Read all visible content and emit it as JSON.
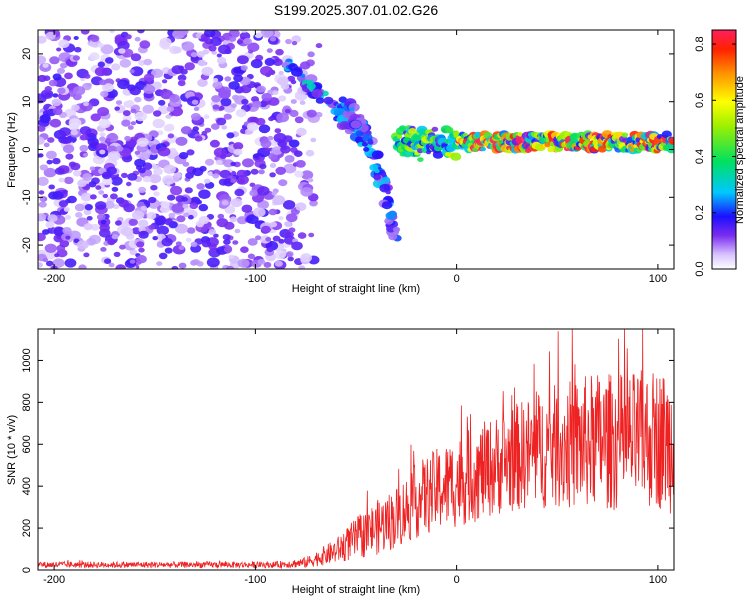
{
  "title": "S199.2025.307.01.02.G26",
  "colors": {
    "snr_line": "#ee2222",
    "scatter_low": "#d9c6ff",
    "scatter_mid": "#8a3df5",
    "scatter_high": "#6a00e8"
  },
  "chart_data": [
    {
      "type": "heatmap",
      "title": "S199.2025.307.01.02.G26",
      "xlabel": "Height of straight line (km)",
      "ylabel": "Frequency (Hz)",
      "xlim": [
        -208,
        108
      ],
      "ylim": [
        -25,
        25
      ],
      "xticks": [
        -200,
        -100,
        0,
        100
      ],
      "yticks": [
        -20,
        -10,
        0,
        10,
        20
      ],
      "xtick_labels": [
        "-200",
        "-100",
        "0",
        "100"
      ],
      "ytick_labels": [
        "-20",
        "-10",
        "0",
        "10",
        "20"
      ],
      "colorbar": {
        "label": "Normalized spectral amplitude",
        "range": [
          0,
          0.85
        ],
        "ticks": [
          0.0,
          0.2,
          0.4,
          0.6,
          0.8
        ],
        "tick_labels": [
          "0.0",
          "0.2",
          "0.4",
          "0.6",
          "0.8"
        ]
      },
      "features": [
        {
          "name": "noise",
          "x_range": [
            -208,
            -68
          ],
          "freq_range": [
            -25,
            25
          ],
          "amplitude": 0.1
        },
        {
          "name": "descending-branch-1",
          "x": [
            -85,
            -60,
            -45
          ],
          "freq": [
            18,
            8,
            2
          ],
          "amplitude": 0.25
        },
        {
          "name": "descending-branch-2",
          "x": [
            -55,
            -40,
            -30
          ],
          "freq": [
            10,
            -2,
            -18
          ],
          "amplitude": 0.2
        },
        {
          "name": "steady-signal",
          "x_range": [
            -30,
            108
          ],
          "freq": 1.5,
          "amplitude": 0.75
        }
      ]
    },
    {
      "type": "line",
      "xlabel": "Height of straight line (km)",
      "ylabel": "SNR (10 * v/v)",
      "xlim": [
        -208,
        108
      ],
      "ylim": [
        0,
        1150
      ],
      "xticks": [
        -200,
        -100,
        0,
        100
      ],
      "yticks": [
        0,
        200,
        400,
        600,
        800,
        1000
      ],
      "xtick_labels": [
        "-200",
        "-100",
        "0",
        "100"
      ],
      "ytick_labels": [
        "0",
        "200",
        "400",
        "600",
        "800",
        "1000"
      ],
      "series": [
        {
          "name": "SNR",
          "x": [
            -208,
            -180,
            -150,
            -120,
            -90,
            -75,
            -60,
            -50,
            -40,
            -30,
            -20,
            -10,
            0,
            10,
            20,
            30,
            40,
            50,
            60,
            70,
            80,
            90,
            100,
            108
          ],
          "mean": [
            25,
            25,
            25,
            25,
            25,
            35,
            90,
            150,
            200,
            250,
            330,
            380,
            420,
            460,
            500,
            540,
            570,
            590,
            600,
            620,
            610,
            620,
            630,
            600
          ],
          "spread": [
            15,
            15,
            15,
            15,
            15,
            25,
            60,
            100,
            130,
            150,
            180,
            200,
            220,
            230,
            240,
            260,
            280,
            300,
            320,
            330,
            330,
            330,
            340,
            340
          ],
          "peak_max": 1150
        }
      ]
    }
  ]
}
